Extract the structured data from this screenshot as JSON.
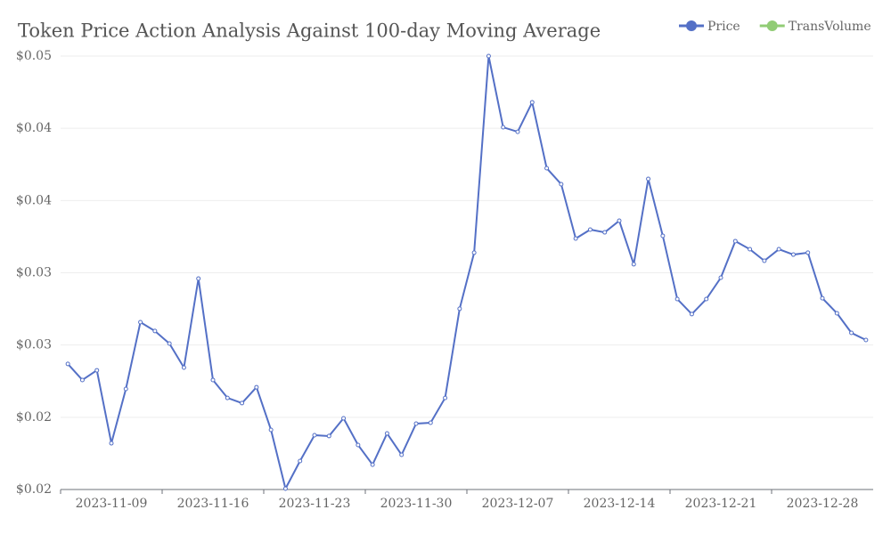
{
  "chart_data": {
    "type": "line",
    "title": "Token Price Action Analysis Against 100-day Moving Average",
    "x": [
      "2023-11-06",
      "2023-11-07",
      "2023-11-08",
      "2023-11-09",
      "2023-11-10",
      "2023-11-11",
      "2023-11-12",
      "2023-11-13",
      "2023-11-14",
      "2023-11-15",
      "2023-11-16",
      "2023-11-17",
      "2023-11-18",
      "2023-11-19",
      "2023-11-20",
      "2023-11-21",
      "2023-11-22",
      "2023-11-23",
      "2023-11-24",
      "2023-11-25",
      "2023-11-26",
      "2023-11-27",
      "2023-11-28",
      "2023-11-29",
      "2023-11-30",
      "2023-12-01",
      "2023-12-02",
      "2023-12-03",
      "2023-12-04",
      "2023-12-05",
      "2023-12-06",
      "2023-12-07",
      "2023-12-08",
      "2023-12-09",
      "2023-12-10",
      "2023-12-11",
      "2023-12-12",
      "2023-12-13",
      "2023-12-14",
      "2023-12-15",
      "2023-12-16",
      "2023-12-17",
      "2023-12-18",
      "2023-12-19",
      "2023-12-20",
      "2023-12-21",
      "2023-12-22",
      "2023-12-23",
      "2023-12-24",
      "2023-12-25",
      "2023-12-26",
      "2023-12-27",
      "2023-12-28",
      "2023-12-29",
      "2023-12-30",
      "2023-12-31"
    ],
    "xticks": [
      "2023-11-09",
      "2023-11-16",
      "2023-11-23",
      "2023-11-30",
      "2023-12-07",
      "2023-12-14",
      "2023-12-21",
      "2023-12-28"
    ],
    "series": [
      {
        "name": "Price",
        "color": "#5470c6",
        "values": [
          0.02869,
          0.02758,
          0.02825,
          0.0232,
          0.02696,
          0.03158,
          0.03097,
          0.0301,
          0.02844,
          0.0346,
          0.02758,
          0.02634,
          0.02598,
          0.02708,
          0.02413,
          0.02006,
          0.02197,
          0.02376,
          0.0237,
          0.02493,
          0.02308,
          0.02172,
          0.02388,
          0.0224,
          0.02456,
          0.02462,
          0.02634,
          0.03251,
          0.03639,
          0.05,
          0.04507,
          0.04476,
          0.0468,
          0.04224,
          0.04113,
          0.03737,
          0.03799,
          0.0378,
          0.0386,
          0.03559,
          0.0415,
          0.03756,
          0.03318,
          0.03214,
          0.03318,
          0.03466,
          0.03719,
          0.03663,
          0.03583,
          0.03663,
          0.03626,
          0.03639,
          0.03324,
          0.0322,
          0.03084,
          0.03035
        ]
      },
      {
        "name": "TransVolume",
        "color": "#91cc75",
        "values": [
          null,
          null,
          null,
          null,
          null,
          null,
          null,
          null,
          null,
          null,
          null,
          null,
          null,
          null,
          null,
          null,
          null,
          null,
          null,
          null,
          null,
          null,
          null,
          null,
          null,
          null,
          null,
          null,
          null,
          null,
          null,
          null,
          null,
          null,
          null,
          null,
          null,
          null,
          null,
          null,
          null,
          null,
          null,
          null,
          null,
          null,
          null,
          null,
          null,
          null,
          null,
          null,
          null,
          null,
          null,
          null
        ]
      }
    ],
    "ylim": [
      0.02,
      0.05
    ],
    "yticks": [
      {
        "value": 0.02,
        "label": "$0.02"
      },
      {
        "value": 0.025,
        "label": "$0.02"
      },
      {
        "value": 0.03,
        "label": "$0.03"
      },
      {
        "value": 0.035,
        "label": "$0.03"
      },
      {
        "value": 0.04,
        "label": "$0.04"
      },
      {
        "value": 0.045,
        "label": "$0.04"
      },
      {
        "value": 0.05,
        "label": "$0.05"
      }
    ],
    "grid": true,
    "legend": "top-right"
  }
}
